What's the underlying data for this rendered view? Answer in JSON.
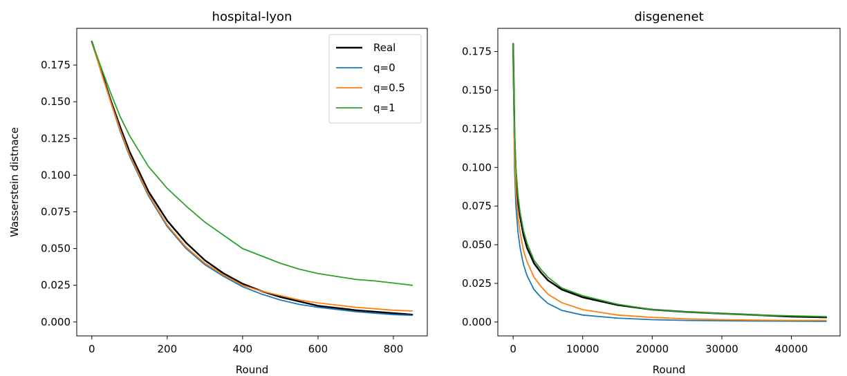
{
  "chart_data": [
    {
      "type": "line",
      "title": "hospital-lyon",
      "xlabel": "Round",
      "ylabel": "Wasserstein distnace",
      "xlim": [
        -40,
        890
      ],
      "ylim": [
        -0.0095,
        0.2
      ],
      "xticks": [
        0,
        200,
        400,
        600,
        800
      ],
      "yticks": [
        0.0,
        0.025,
        0.05,
        0.075,
        0.1,
        0.125,
        0.15,
        0.175
      ],
      "ytick_labels": [
        "0.000",
        "0.025",
        "0.050",
        "0.075",
        "0.100",
        "0.125",
        "0.150",
        "0.175"
      ],
      "xtick_labels": [
        "0",
        "200",
        "400",
        "600",
        "800"
      ],
      "legend": "top-right",
      "series": [
        {
          "name": "Real",
          "color": "#000000",
          "width": 2.5,
          "x": [
            0,
            25,
            50,
            75,
            100,
            150,
            200,
            250,
            300,
            350,
            400,
            450,
            500,
            550,
            600,
            650,
            700,
            750,
            800,
            850
          ],
          "y": [
            0.191,
            0.171,
            0.151,
            0.133,
            0.116,
            0.089,
            0.069,
            0.054,
            0.042,
            0.033,
            0.026,
            0.021,
            0.017,
            0.014,
            0.011,
            0.0095,
            0.008,
            0.007,
            0.006,
            0.005
          ]
        },
        {
          "name": "q=0",
          "color": "#1f77b4",
          "width": 1.8,
          "x": [
            0,
            25,
            50,
            75,
            100,
            150,
            200,
            250,
            300,
            350,
            400,
            450,
            500,
            550,
            600,
            650,
            700,
            750,
            800,
            850
          ],
          "y": [
            0.191,
            0.17,
            0.15,
            0.13,
            0.113,
            0.086,
            0.065,
            0.05,
            0.039,
            0.031,
            0.024,
            0.019,
            0.015,
            0.012,
            0.01,
            0.0085,
            0.007,
            0.006,
            0.005,
            0.0045
          ]
        },
        {
          "name": "q=0.5",
          "color": "#ff7f0e",
          "width": 1.8,
          "x": [
            0,
            25,
            50,
            75,
            100,
            150,
            200,
            250,
            300,
            350,
            400,
            450,
            500,
            550,
            600,
            650,
            700,
            750,
            800,
            850
          ],
          "y": [
            0.191,
            0.17,
            0.15,
            0.131,
            0.114,
            0.087,
            0.066,
            0.051,
            0.04,
            0.032,
            0.025,
            0.021,
            0.018,
            0.015,
            0.013,
            0.0115,
            0.01,
            0.009,
            0.008,
            0.0075
          ]
        },
        {
          "name": "q=1",
          "color": "#2ca02c",
          "width": 1.8,
          "x": [
            0,
            25,
            50,
            75,
            100,
            150,
            200,
            250,
            300,
            350,
            400,
            450,
            500,
            550,
            600,
            650,
            700,
            750,
            800,
            850
          ],
          "y": [
            0.191,
            0.173,
            0.156,
            0.14,
            0.127,
            0.106,
            0.091,
            0.079,
            0.068,
            0.059,
            0.05,
            0.045,
            0.04,
            0.036,
            0.033,
            0.031,
            0.029,
            0.028,
            0.0265,
            0.025
          ]
        }
      ]
    },
    {
      "type": "line",
      "title": "disgenenet",
      "xlabel": "Round",
      "ylabel": "",
      "xlim": [
        -2200,
        47000
      ],
      "ylim": [
        -0.009,
        0.19
      ],
      "xticks": [
        0,
        10000,
        20000,
        30000,
        40000
      ],
      "yticks": [
        0.0,
        0.025,
        0.05,
        0.075,
        0.1,
        0.125,
        0.15,
        0.175
      ],
      "ytick_labels": [
        "0.000",
        "0.025",
        "0.050",
        "0.075",
        "0.100",
        "0.125",
        "0.150",
        "0.175"
      ],
      "xtick_labels": [
        "0",
        "10000",
        "20000",
        "30000",
        "40000"
      ],
      "series": [
        {
          "name": "Real",
          "color": "#000000",
          "width": 2.5,
          "x": [
            0,
            200,
            400,
            700,
            1000,
            1500,
            2000,
            3000,
            4000,
            5000,
            7000,
            10000,
            15000,
            20000,
            25000,
            30000,
            35000,
            40000,
            45000
          ],
          "y": [
            0.18,
            0.12,
            0.095,
            0.078,
            0.068,
            0.056,
            0.048,
            0.038,
            0.032,
            0.027,
            0.021,
            0.016,
            0.011,
            0.008,
            0.0065,
            0.0055,
            0.0045,
            0.0035,
            0.003
          ]
        },
        {
          "name": "q=0",
          "color": "#1f77b4",
          "width": 1.8,
          "x": [
            0,
            200,
            400,
            700,
            1000,
            1500,
            2000,
            3000,
            4000,
            5000,
            7000,
            10000,
            15000,
            20000,
            25000,
            30000,
            35000,
            40000,
            45000
          ],
          "y": [
            0.18,
            0.1,
            0.075,
            0.058,
            0.048,
            0.037,
            0.03,
            0.021,
            0.016,
            0.012,
            0.0075,
            0.0045,
            0.0025,
            0.0015,
            0.001,
            0.0008,
            0.0006,
            0.0005,
            0.0004
          ]
        },
        {
          "name": "q=0.5",
          "color": "#ff7f0e",
          "width": 1.8,
          "x": [
            0,
            200,
            400,
            700,
            1000,
            1500,
            2000,
            3000,
            4000,
            5000,
            7000,
            10000,
            15000,
            20000,
            25000,
            30000,
            35000,
            40000,
            45000
          ],
          "y": [
            0.18,
            0.11,
            0.085,
            0.068,
            0.058,
            0.046,
            0.039,
            0.029,
            0.023,
            0.018,
            0.0125,
            0.008,
            0.0045,
            0.003,
            0.002,
            0.0015,
            0.0012,
            0.001,
            0.001
          ]
        },
        {
          "name": "q=1",
          "color": "#2ca02c",
          "width": 1.8,
          "x": [
            0,
            200,
            400,
            700,
            1000,
            1500,
            2000,
            3000,
            4000,
            5000,
            7000,
            10000,
            15000,
            20000,
            25000,
            30000,
            35000,
            40000,
            45000
          ],
          "y": [
            0.18,
            0.125,
            0.1,
            0.082,
            0.071,
            0.059,
            0.051,
            0.04,
            0.034,
            0.029,
            0.022,
            0.017,
            0.0115,
            0.008,
            0.0065,
            0.0055,
            0.0045,
            0.004,
            0.0035
          ]
        }
      ]
    }
  ]
}
